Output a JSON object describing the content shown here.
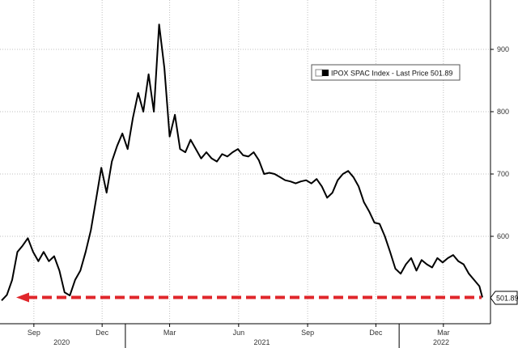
{
  "chart_data": {
    "type": "line",
    "title": "",
    "xlabel": "",
    "ylabel": "",
    "ylim": [
      470,
      950
    ],
    "grid": true,
    "legend_position": "top-right",
    "y_ticks": [
      "600",
      "700",
      "800",
      "900"
    ],
    "x_ticks": [
      "Sep",
      "Dec",
      "Mar",
      "Jun",
      "Sep",
      "Dec",
      "Mar"
    ],
    "x_years": [
      "2020",
      "2021",
      "2022"
    ],
    "legend": {
      "label": "IPOX SPAC Index - Last Price 501.89"
    },
    "last_price": {
      "label": "501.89",
      "value": 501.89
    },
    "colors": {
      "line": "#000000",
      "arrow": "#e0262b",
      "grid": "#bfbfbf"
    },
    "series": [
      {
        "values": [
          [
            "2020-07-20",
            497
          ],
          [
            "2020-07-27",
            506
          ],
          [
            "2020-08-03",
            530
          ],
          [
            "2020-08-10",
            575
          ],
          [
            "2020-08-17",
            585
          ],
          [
            "2020-08-24",
            597
          ],
          [
            "2020-08-31",
            575
          ],
          [
            "2020-09-07",
            560
          ],
          [
            "2020-09-14",
            575
          ],
          [
            "2020-09-21",
            560
          ],
          [
            "2020-09-28",
            568
          ],
          [
            "2020-10-05",
            545
          ],
          [
            "2020-10-12",
            510
          ],
          [
            "2020-10-19",
            505
          ],
          [
            "2020-10-26",
            530
          ],
          [
            "2020-11-02",
            545
          ],
          [
            "2020-11-09",
            575
          ],
          [
            "2020-11-16",
            610
          ],
          [
            "2020-11-23",
            660
          ],
          [
            "2020-11-30",
            710
          ],
          [
            "2020-12-07",
            670
          ],
          [
            "2020-12-14",
            720
          ],
          [
            "2020-12-21",
            745
          ],
          [
            "2020-12-28",
            765
          ],
          [
            "2021-01-04",
            740
          ],
          [
            "2021-01-11",
            790
          ],
          [
            "2021-01-18",
            830
          ],
          [
            "2021-01-25",
            800
          ],
          [
            "2021-02-01",
            860
          ],
          [
            "2021-02-08",
            800
          ],
          [
            "2021-02-15",
            940
          ],
          [
            "2021-02-22",
            870
          ],
          [
            "2021-03-01",
            760
          ],
          [
            "2021-03-08",
            795
          ],
          [
            "2021-03-15",
            740
          ],
          [
            "2021-03-22",
            735
          ],
          [
            "2021-03-29",
            755
          ],
          [
            "2021-04-05",
            740
          ],
          [
            "2021-04-12",
            725
          ],
          [
            "2021-04-19",
            735
          ],
          [
            "2021-04-26",
            725
          ],
          [
            "2021-05-03",
            720
          ],
          [
            "2021-05-10",
            732
          ],
          [
            "2021-05-17",
            728
          ],
          [
            "2021-05-24",
            735
          ],
          [
            "2021-05-31",
            740
          ],
          [
            "2021-06-07",
            730
          ],
          [
            "2021-06-14",
            728
          ],
          [
            "2021-06-21",
            735
          ],
          [
            "2021-06-28",
            722
          ],
          [
            "2021-07-05",
            700
          ],
          [
            "2021-07-12",
            702
          ],
          [
            "2021-07-19",
            700
          ],
          [
            "2021-07-26",
            695
          ],
          [
            "2021-08-02",
            690
          ],
          [
            "2021-08-09",
            688
          ],
          [
            "2021-08-16",
            685
          ],
          [
            "2021-08-23",
            688
          ],
          [
            "2021-08-30",
            690
          ],
          [
            "2021-09-06",
            685
          ],
          [
            "2021-09-13",
            692
          ],
          [
            "2021-09-20",
            680
          ],
          [
            "2021-09-27",
            662
          ],
          [
            "2021-10-04",
            670
          ],
          [
            "2021-10-11",
            690
          ],
          [
            "2021-10-18",
            700
          ],
          [
            "2021-10-25",
            705
          ],
          [
            "2021-11-01",
            695
          ],
          [
            "2021-11-08",
            680
          ],
          [
            "2021-11-15",
            655
          ],
          [
            "2021-11-22",
            640
          ],
          [
            "2021-11-29",
            622
          ],
          [
            "2021-12-06",
            620
          ],
          [
            "2021-12-13",
            600
          ],
          [
            "2021-12-20",
            575
          ],
          [
            "2021-12-27",
            548
          ],
          [
            "2022-01-03",
            540
          ],
          [
            "2022-01-10",
            555
          ],
          [
            "2022-01-17",
            565
          ],
          [
            "2022-01-24",
            545
          ],
          [
            "2022-01-31",
            562
          ],
          [
            "2022-02-07",
            555
          ],
          [
            "2022-02-14",
            550
          ],
          [
            "2022-02-21",
            565
          ],
          [
            "2022-02-28",
            558
          ],
          [
            "2022-03-07",
            565
          ],
          [
            "2022-03-14",
            570
          ],
          [
            "2022-03-21",
            560
          ],
          [
            "2022-03-28",
            555
          ],
          [
            "2022-04-04",
            540
          ],
          [
            "2022-04-11",
            530
          ],
          [
            "2022-04-18",
            520
          ],
          [
            "2022-04-22",
            501.89
          ]
        ]
      }
    ]
  }
}
